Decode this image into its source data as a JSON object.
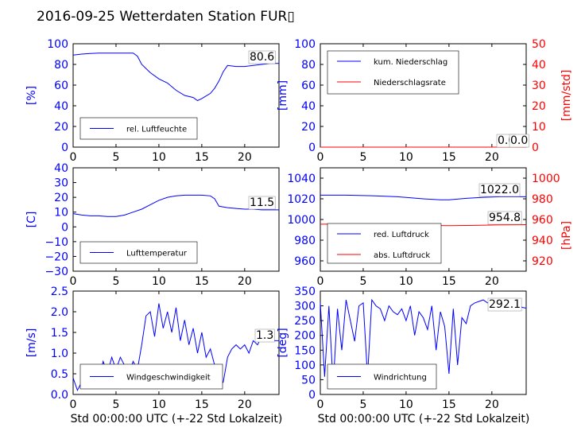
{
  "title": "2016-09-25 Wetterdaten Station FUR▯",
  "xlabel": "Std 00:00:00 UTC (+-22 Std Lokalzeit)",
  "colors": {
    "blue": "#0000ff",
    "red": "#ff0000",
    "black": "#000000"
  },
  "chart_data": [
    {
      "type": "line",
      "id": "humidity",
      "ylabel": "[%]",
      "xlim": [
        0,
        24
      ],
      "ylim": [
        0,
        100
      ],
      "xticks": [
        "0",
        "5",
        "10",
        "15",
        "20"
      ],
      "yticks": [
        "0",
        "20",
        "40",
        "60",
        "80",
        "100"
      ],
      "current_value": "80.6",
      "legend_position": "lower-left",
      "series": [
        {
          "name": "rel. Luftfeuchte",
          "color": "#0000ff",
          "x": [
            0,
            1,
            2,
            3,
            4,
            5,
            6,
            7,
            7.5,
            8,
            9,
            10,
            11,
            12,
            13,
            14,
            14.5,
            15,
            16,
            16.5,
            17,
            17.5,
            18,
            19,
            20,
            21,
            22,
            23,
            24
          ],
          "y": [
            89,
            90,
            90.5,
            91,
            91,
            91,
            91,
            91,
            88,
            80,
            72,
            66,
            62,
            55,
            50,
            48,
            45,
            47,
            52,
            57,
            64,
            73,
            79,
            78,
            78,
            79,
            80,
            81,
            81
          ]
        }
      ]
    },
    {
      "type": "line",
      "id": "precipitation",
      "ylabel": "[mm]",
      "y2label": "[mm/std]",
      "xlim": [
        0,
        24
      ],
      "ylim": [
        0,
        100
      ],
      "y2lim": [
        0,
        50
      ],
      "xticks": [
        "0",
        "5",
        "10",
        "15",
        "20"
      ],
      "yticks": [
        "0",
        "20",
        "40",
        "60",
        "80",
        "100"
      ],
      "y2ticks": [
        "0",
        "10",
        "20",
        "30",
        "40",
        "50"
      ],
      "current_value": "0.0",
      "current_value2": "0.0",
      "legend_position": "upper-left",
      "series": [
        {
          "name": "kum. Niederschlag",
          "color": "#0000ff",
          "x": [
            0,
            24
          ],
          "y": [
            0,
            0
          ]
        },
        {
          "name": "Niederschlagsrate",
          "color": "#ff0000",
          "x": [
            0,
            24
          ],
          "y": [
            0,
            0
          ]
        }
      ]
    },
    {
      "type": "line",
      "id": "temperature",
      "ylabel": "[C]",
      "xlim": [
        0,
        24
      ],
      "ylim": [
        -30,
        40
      ],
      "xticks": [
        "0",
        "5",
        "10",
        "15",
        "20"
      ],
      "yticks": [
        "−30",
        "−20",
        "−10",
        "0",
        "10",
        "20",
        "30",
        "40"
      ],
      "current_value": "11.5",
      "legend_position": "lower-left",
      "series": [
        {
          "name": "Lufttemperatur",
          "color": "#0000ff",
          "x": [
            0,
            1,
            2,
            3,
            4,
            5,
            6,
            7,
            8,
            9,
            10,
            11,
            12,
            13,
            14,
            15,
            16,
            16.5,
            17,
            18,
            19,
            20,
            21,
            22,
            23,
            24
          ],
          "y": [
            9,
            8,
            7.5,
            7.5,
            7,
            7,
            8,
            10,
            12,
            15,
            18,
            20,
            21,
            21.5,
            21.5,
            21.5,
            21,
            19,
            14,
            13,
            12.5,
            12,
            12,
            11.5,
            11.5,
            11.5
          ]
        }
      ]
    },
    {
      "type": "line",
      "id": "pressure",
      "ylabel": "[hPa]",
      "xlim": [
        0,
        24
      ],
      "ylim": [
        950,
        1050
      ],
      "y2lim": [
        910,
        1010
      ],
      "xticks": [
        "0",
        "5",
        "10",
        "15",
        "20"
      ],
      "yticks": [
        "960",
        "980",
        "1000",
        "1020",
        "1040"
      ],
      "y2ticks": [
        "920",
        "940",
        "960",
        "980",
        "1000"
      ],
      "current_value": "1022.0",
      "current_value2": "954.8",
      "legend_position": "lower-left",
      "series": [
        {
          "name": "red. Luftdruck",
          "color": "#0000ff",
          "axis": "left",
          "x": [
            0,
            3,
            6,
            9,
            12,
            14,
            15,
            17,
            19,
            21,
            24
          ],
          "y": [
            1023.5,
            1023.5,
            1023,
            1022,
            1020,
            1019,
            1019,
            1020.5,
            1021.5,
            1022,
            1022
          ]
        },
        {
          "name": "abs. Luftdruck",
          "color": "#ff0000",
          "axis": "right",
          "x": [
            0,
            3,
            6,
            9,
            12,
            15,
            18,
            21,
            24
          ],
          "y": [
            955.5,
            955.5,
            955,
            954.5,
            954.2,
            954,
            954.3,
            954.8,
            955
          ]
        }
      ]
    },
    {
      "type": "line",
      "id": "wind-speed",
      "ylabel": "[m/s]",
      "xlim": [
        0,
        24
      ],
      "ylim": [
        0,
        2.5
      ],
      "xticks": [
        "0",
        "5",
        "10",
        "15",
        "20"
      ],
      "yticks": [
        "0.0",
        "0.5",
        "1.0",
        "1.5",
        "2.0",
        "2.5"
      ],
      "current_value": "1.3",
      "legend_position": "lower-left",
      "series": [
        {
          "name": "Windgeschwindigkeit",
          "color": "#0000ff",
          "x": [
            0,
            0.5,
            1,
            1.5,
            2,
            2.5,
            3,
            3.5,
            4,
            4.5,
            5,
            5.5,
            6,
            6.5,
            7,
            7.5,
            8,
            8.5,
            9,
            9.5,
            10,
            10.5,
            11,
            11.5,
            12,
            12.5,
            13,
            13.5,
            14,
            14.5,
            15,
            15.5,
            16,
            16.5,
            17,
            17.5,
            18,
            18.5,
            19,
            19.5,
            20,
            20.5,
            21,
            21.5,
            22,
            22.5,
            23,
            23.5,
            24
          ],
          "y": [
            0.4,
            0.1,
            0.3,
            0.5,
            0.2,
            0.6,
            0.4,
            0.8,
            0.5,
            0.9,
            0.6,
            0.9,
            0.7,
            0.5,
            0.8,
            0.6,
            1.2,
            1.9,
            2.0,
            1.4,
            2.2,
            1.6,
            2.0,
            1.5,
            2.1,
            1.3,
            1.8,
            1.2,
            1.6,
            1.0,
            1.5,
            0.9,
            1.1,
            0.7,
            0.2,
            0.3,
            0.9,
            1.1,
            1.2,
            1.1,
            1.2,
            1.0,
            1.3,
            1.2,
            1.4,
            1.3,
            1.4,
            1.3,
            1.3
          ]
        }
      ]
    },
    {
      "type": "line",
      "id": "wind-direction",
      "ylabel": "[deg]",
      "xlim": [
        0,
        24
      ],
      "ylim": [
        0,
        350
      ],
      "xticks": [
        "0",
        "5",
        "10",
        "15",
        "20"
      ],
      "yticks": [
        "0",
        "50",
        "100",
        "150",
        "200",
        "250",
        "300",
        "350"
      ],
      "current_value": "292.1",
      "legend_position": "lower-left",
      "series": [
        {
          "name": "Windrichtung",
          "color": "#0000ff",
          "x": [
            0,
            0.5,
            1,
            1.5,
            2,
            2.5,
            3,
            3.5,
            4,
            4.5,
            5,
            5.5,
            6,
            6.5,
            7,
            7.5,
            8,
            8.5,
            9,
            9.5,
            10,
            10.5,
            11,
            11.5,
            12,
            12.5,
            13,
            13.5,
            14,
            14.5,
            15,
            15.5,
            16,
            16.5,
            17,
            17.5,
            18,
            18.5,
            19,
            19.5,
            20,
            20.5,
            21,
            21.5,
            22,
            22.5,
            23,
            23.5,
            24
          ],
          "y": [
            310,
            60,
            300,
            30,
            290,
            150,
            320,
            250,
            180,
            300,
            310,
            60,
            320,
            300,
            290,
            250,
            300,
            280,
            270,
            290,
            250,
            300,
            200,
            280,
            260,
            220,
            300,
            150,
            280,
            230,
            70,
            290,
            100,
            260,
            240,
            300,
            310,
            315,
            320,
            310,
            310,
            305,
            300,
            310,
            300,
            295,
            305,
            295,
            292
          ]
        }
      ]
    }
  ]
}
